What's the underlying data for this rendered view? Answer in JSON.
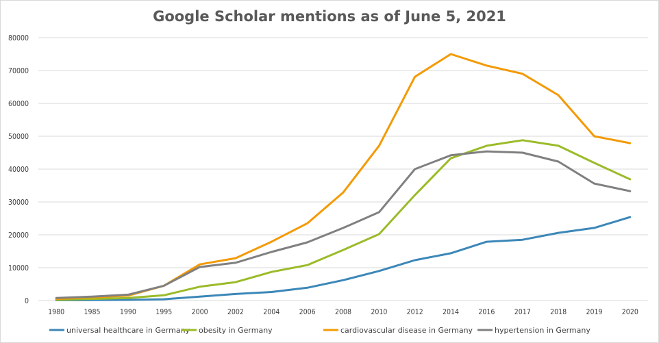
{
  "chart_data": {
    "type": "line",
    "title": "Google Scholar mentions as of June 5, 2021",
    "xlabel": "",
    "ylabel": "",
    "ylim": [
      0,
      80000
    ],
    "yticks": [
      0,
      10000,
      20000,
      30000,
      40000,
      50000,
      60000,
      70000,
      80000
    ],
    "grid": true,
    "legend_position": "bottom",
    "categories": [
      "1980",
      "1985",
      "1990",
      "1995",
      "2000",
      "2002",
      "2004",
      "2006",
      "2008",
      "2010",
      "2012",
      "2014",
      "2016",
      "2017",
      "2018",
      "2019",
      "2020"
    ],
    "series": [
      {
        "name": "universal healthcare in Germany",
        "color": "#3C87B8",
        "values": [
          100,
          150,
          200,
          400,
          1200,
          2000,
          2600,
          3900,
          6200,
          9000,
          12300,
          14400,
          17900,
          18500,
          20600,
          22100,
          25400
        ]
      },
      {
        "name": "obesity in Germany",
        "color": "#9BBB28",
        "values": [
          200,
          500,
          800,
          1600,
          4200,
          5600,
          8700,
          10800,
          15400,
          20200,
          32100,
          43300,
          47100,
          48800,
          47100,
          41900,
          36900
        ]
      },
      {
        "name": "cardiovascular disease in Germany",
        "color": "#F39A05",
        "values": [
          500,
          1000,
          1500,
          4500,
          11000,
          12900,
          17900,
          23500,
          32900,
          47100,
          68100,
          75000,
          71500,
          69000,
          62500,
          50000,
          47900
        ]
      },
      {
        "name": "hypertension in Germany",
        "color": "#808080",
        "values": [
          800,
          1200,
          1800,
          4500,
          10200,
          11500,
          14800,
          17700,
          22100,
          26900,
          40000,
          44200,
          45400,
          45000,
          42300,
          35600,
          33300
        ]
      }
    ]
  }
}
